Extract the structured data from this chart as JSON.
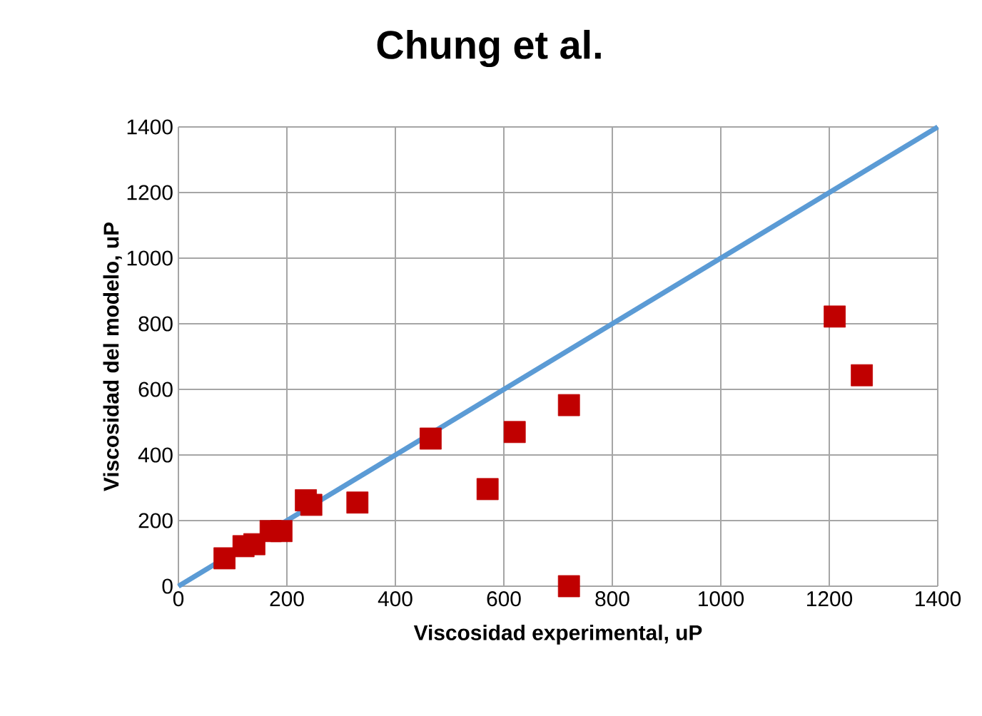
{
  "chart_data": {
    "type": "scatter",
    "title": "Chung et al.",
    "xlabel": "Viscosidad experimental, uP",
    "ylabel": "Viscosidad del modelo, uP",
    "series": [
      {
        "color": "#c00000",
        "marker": "square",
        "x": [
          85,
          120,
          140,
          170,
          190,
          235,
          245,
          330,
          465,
          570,
          620,
          720,
          720,
          1210,
          1260
        ],
        "values": [
          85,
          122,
          128,
          168,
          168,
          262,
          248,
          255,
          450,
          296,
          470,
          552,
          0,
          822,
          643
        ]
      },
      {
        "type": "line",
        "color": "#5b9bd5",
        "marker": "none",
        "x": [
          0,
          1400
        ],
        "values": [
          0,
          1400
        ]
      }
    ],
    "xlim": [
      0,
      1400
    ],
    "ylim": [
      0,
      1400
    ],
    "xticks": [
      0,
      200,
      400,
      600,
      800,
      1000,
      1200,
      1400
    ],
    "yticks": [
      0,
      200,
      400,
      600,
      800,
      1000,
      1200,
      1400
    ],
    "grid": true
  }
}
